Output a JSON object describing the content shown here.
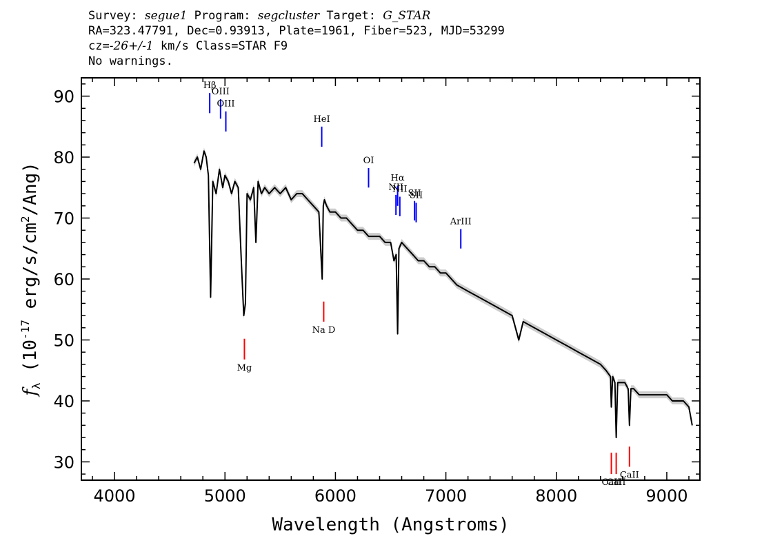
{
  "header": {
    "line1": {
      "survey_label": "Survey: ",
      "survey": "segue1",
      "program_label": " Program: ",
      "program": "segcluster",
      "target_label": " Target: ",
      "target": "G_STAR"
    },
    "line2": "RA=323.47791, Dec=0.93913, Plate=1961, Fiber=523, MJD=53299",
    "line3": {
      "cz_label": "cz=",
      "cz": "-26+/-1",
      "rest": " km/s Class=STAR F9"
    },
    "line4": "No warnings."
  },
  "chart_data": {
    "type": "line",
    "xlabel": "Wavelength (Angstroms)",
    "ylabel": "f_λ (10^-17 erg/s/cm^2/Ang)",
    "xlim": [
      3700,
      9300
    ],
    "ylim": [
      27,
      93
    ],
    "xticks": [
      4000,
      5000,
      6000,
      7000,
      8000,
      9000
    ],
    "yticks": [
      30,
      40,
      50,
      60,
      70,
      80,
      90
    ],
    "grid": false,
    "colors": {
      "spectrum": "#000000",
      "error_band": "#c8c8c8",
      "emission_lines": "#0000ff",
      "absorption_lines": "#ff0000"
    },
    "series": [
      {
        "x": [
          4720,
          4750,
          4780,
          4810,
          4830,
          4850,
          4870,
          4890,
          4920,
          4950,
          4980,
          5000,
          5030,
          5060,
          5090,
          5120,
          5150,
          5170,
          5185,
          5200,
          5230,
          5260,
          5280,
          5300,
          5330,
          5360,
          5400,
          5450,
          5500,
          5550,
          5600,
          5650,
          5700,
          5750,
          5800,
          5850,
          5880,
          5890,
          5900,
          5920,
          5950,
          6000,
          6050,
          6100,
          6150,
          6200,
          6250,
          6300,
          6350,
          6400,
          6450,
          6500,
          6530,
          6550,
          6563,
          6575,
          6600,
          6650,
          6700,
          6750,
          6800,
          6850,
          6900,
          6950,
          7000,
          7100,
          7200,
          7300,
          7400,
          7500,
          7600,
          7660,
          7700,
          7800,
          7900,
          8000,
          8100,
          8200,
          8300,
          8400,
          8450,
          8490,
          8498,
          8510,
          8530,
          8542,
          8555,
          8580,
          8620,
          8650,
          8662,
          8675,
          8700,
          8750,
          8800,
          8850,
          8900,
          8950,
          9000,
          9050,
          9100,
          9150,
          9200,
          9230
        ],
        "y": [
          79,
          80,
          78,
          81,
          80,
          77,
          57,
          76,
          74,
          78,
          75,
          77,
          76,
          74,
          76,
          75,
          62,
          54,
          56,
          74,
          73,
          75,
          66,
          76,
          74,
          75,
          74,
          75,
          74,
          75,
          73,
          74,
          74,
          73,
          72,
          71,
          60,
          72,
          73,
          72,
          71,
          71,
          70,
          70,
          69,
          68,
          68,
          67,
          67,
          67,
          66,
          66,
          63,
          64,
          51,
          65,
          66,
          65,
          64,
          63,
          63,
          62,
          62,
          61,
          61,
          59,
          58,
          57,
          56,
          55,
          54,
          50,
          53,
          52,
          51,
          50,
          49,
          48,
          47,
          46,
          45,
          44,
          39,
          44,
          43,
          34,
          43,
          43,
          43,
          42,
          36,
          42,
          42,
          41,
          41,
          41,
          41,
          41,
          41,
          40,
          40,
          40,
          39,
          36
        ]
      }
    ],
    "line_markers": {
      "emission": [
        {
          "label": "Hβ",
          "x": 4862,
          "y_top": 90.5,
          "y_bottom": 87.2
        },
        {
          "label": "OIII",
          "x": 4960,
          "y_top": 89.5,
          "y_bottom": 86.3
        },
        {
          "label": "OIII",
          "x": 5008,
          "y_top": 87.5,
          "y_bottom": 84.2
        },
        {
          "label": "HeI",
          "x": 5876,
          "y_top": 85.0,
          "y_bottom": 81.7
        },
        {
          "label": "OI",
          "x": 6300,
          "y_top": 78.2,
          "y_bottom": 75.0
        },
        {
          "label": "NII",
          "x": 6548,
          "y_top": 73.8,
          "y_bottom": 70.5
        },
        {
          "label": "Hα",
          "x": 6563,
          "y_top": 75.3,
          "y_bottom": 72.0
        },
        {
          "label": "NII",
          "x": 6583,
          "y_top": 73.5,
          "y_bottom": 70.3
        },
        {
          "label": "SII",
          "x": 6716,
          "y_top": 72.8,
          "y_bottom": 69.6
        },
        {
          "label": "SII",
          "x": 6731,
          "y_top": 72.5,
          "y_bottom": 69.3
        },
        {
          "label": "ArIII",
          "x": 7135,
          "y_top": 68.2,
          "y_bottom": 65.0
        }
      ],
      "absorption": [
        {
          "label": "Mg",
          "x": 5176,
          "y_top": 50.2,
          "y_bottom": 46.8
        },
        {
          "label": "Na D",
          "x": 5894,
          "y_top": 56.3,
          "y_bottom": 53.0
        },
        {
          "label": "CaII",
          "x": 8498,
          "y_top": 31.5,
          "y_bottom": 28.0
        },
        {
          "label": "CaII",
          "x": 8542,
          "y_top": 31.5,
          "y_bottom": 28.0
        },
        {
          "label": "CaII",
          "x": 8662,
          "y_top": 32.5,
          "y_bottom": 29.2
        }
      ]
    }
  }
}
